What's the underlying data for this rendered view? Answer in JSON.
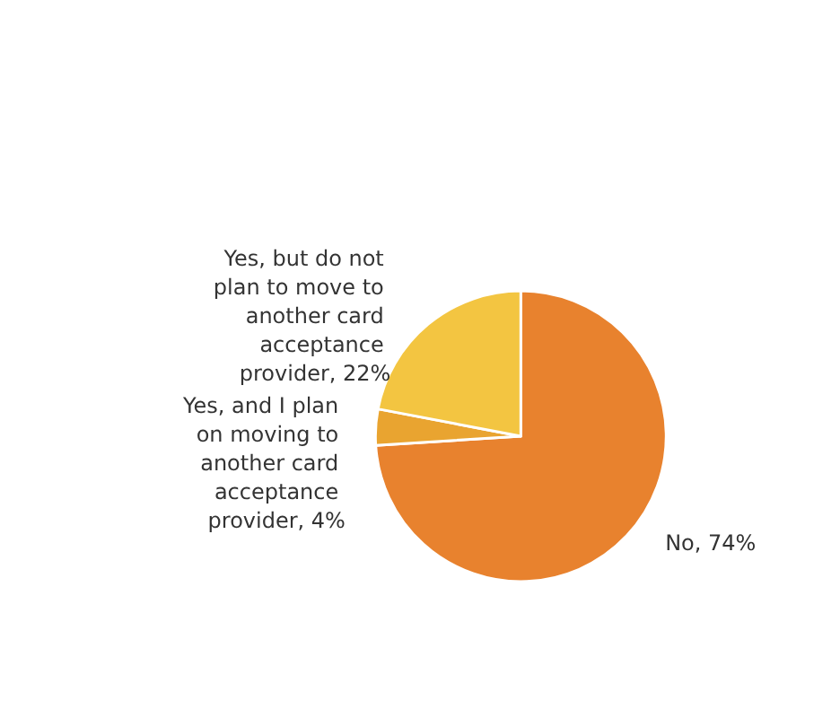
{
  "chart_data": {
    "type": "pie",
    "categories": [
      "No",
      "Yes, and I plan on moving to another card acceptance provider",
      "Yes, but do not plan to move to another card acceptance provider"
    ],
    "values": [
      74,
      4,
      22
    ],
    "value_labels": [
      "74%",
      "4%",
      "22%"
    ],
    "colors": [
      "#e8822e",
      "#e9a430",
      "#f3c541"
    ]
  }
}
